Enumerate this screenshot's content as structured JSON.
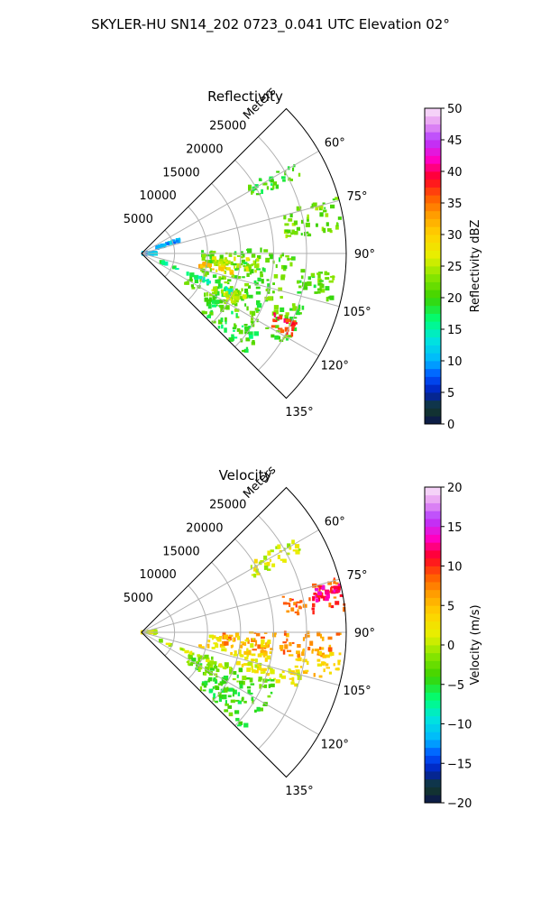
{
  "figure": {
    "suptitle": "SKYLER-HU  SN14_202  0723_0.041 UTC Elevation 02°"
  },
  "chart_data": [
    {
      "type": "heatmap",
      "projection": "polar-sector",
      "title": "Reflectivity",
      "range_label": "Meters",
      "range_ticks": [
        5000,
        10000,
        15000,
        20000,
        25000
      ],
      "range_tick_labels": [
        "5000",
        "10000",
        "15000",
        "20000",
        "25000"
      ],
      "range_max": 31000,
      "angle_ticks_deg": [
        60,
        75,
        90,
        105,
        120,
        135
      ],
      "angle_tick_labels": [
        "60°",
        "75°",
        "90°",
        "105°",
        "120°",
        "135°"
      ],
      "sector_deg": [
        45,
        135
      ],
      "grid": true,
      "colorbar": {
        "label": "Reflectivity dBZ",
        "min": 0,
        "max": 50,
        "ticks": [
          0,
          5,
          10,
          15,
          20,
          25,
          30,
          35,
          40,
          45,
          50
        ],
        "tick_labels": [
          "0",
          "5",
          "10",
          "15",
          "20",
          "25",
          "30",
          "35",
          "40",
          "45",
          "50"
        ]
      },
      "regions": [
        {
          "az": [
            68,
            72
          ],
          "r": [
            2500,
            6500
          ],
          "value": 10
        },
        {
          "az": [
            85,
            94
          ],
          "r": [
            0,
            2200
          ],
          "value": 11
        },
        {
          "az": [
            58,
            64
          ],
          "r": [
            19000,
            27000
          ],
          "value": 20
        },
        {
          "az": [
            74,
            84
          ],
          "r": [
            22000,
            31000
          ],
          "value": 22
        },
        {
          "az": [
            88,
            108
          ],
          "r": [
            9000,
            23000
          ],
          "value": 21
        },
        {
          "az": [
            93,
            99
          ],
          "r": [
            11000,
            18000
          ],
          "value": 25
        },
        {
          "az": [
            96,
            104
          ],
          "r": [
            24000,
            30500
          ],
          "value": 21
        },
        {
          "az": [
            99,
            103
          ],
          "r": [
            9000,
            14000
          ],
          "value": 30
        },
        {
          "az": [
            108,
            124
          ],
          "r": [
            8000,
            26000
          ],
          "value": 21
        },
        {
          "az": [
            112,
            118
          ],
          "r": [
            12000,
            17000
          ],
          "value": 26
        },
        {
          "az": [
            114,
            119
          ],
          "r": [
            22000,
            26000
          ],
          "value": 38
        },
        {
          "az": [
            122,
            134
          ],
          "r": [
            12000,
            22000
          ],
          "value": 19
        },
        {
          "az": [
            112,
            114
          ],
          "r": [
            3000,
            15000
          ],
          "value": 16
        }
      ]
    },
    {
      "type": "heatmap",
      "projection": "polar-sector",
      "title": "Velocity",
      "range_label": "Meters",
      "range_ticks": [
        5000,
        10000,
        15000,
        20000,
        25000
      ],
      "range_tick_labels": [
        "5000",
        "10000",
        "15000",
        "20000",
        "25000"
      ],
      "range_max": 31000,
      "angle_ticks_deg": [
        60,
        75,
        90,
        105,
        120,
        135
      ],
      "angle_tick_labels": [
        "60°",
        "75°",
        "90°",
        "105°",
        "120°",
        "135°"
      ],
      "sector_deg": [
        45,
        135
      ],
      "grid": true,
      "colorbar": {
        "label": "Velocity (m/s)",
        "min": -20,
        "max": 20,
        "ticks": [
          -20,
          -15,
          -10,
          -5,
          0,
          5,
          10,
          15,
          20
        ],
        "tick_labels": [
          "−20",
          "−15",
          "−10",
          "−5",
          "0",
          "5",
          "10",
          "15",
          "20"
        ]
      },
      "regions": [
        {
          "az": [
            85,
            94
          ],
          "r": [
            0,
            2200
          ],
          "value": 1
        },
        {
          "az": [
            58,
            64
          ],
          "r": [
            19000,
            27000
          ],
          "value": 1
        },
        {
          "az": [
            74,
            84
          ],
          "r": [
            22000,
            31000
          ],
          "value": 9
        },
        {
          "az": [
            76,
            80
          ],
          "r": [
            27000,
            31000
          ],
          "value": 12
        },
        {
          "az": [
            90,
            100
          ],
          "r": [
            12000,
            30000
          ],
          "value": 7
        },
        {
          "az": [
            93,
            104
          ],
          "r": [
            9000,
            20000
          ],
          "value": 3
        },
        {
          "az": [
            96,
            104
          ],
          "r": [
            24000,
            30500
          ],
          "value": 4
        },
        {
          "az": [
            104,
            110
          ],
          "r": [
            15000,
            25000
          ],
          "value": 2
        },
        {
          "az": [
            110,
            124
          ],
          "r": [
            8000,
            22000
          ],
          "value": -3
        },
        {
          "az": [
            122,
            134
          ],
          "r": [
            12000,
            22000
          ],
          "value": -4
        },
        {
          "az": [
            112,
            114
          ],
          "r": [
            3000,
            15000
          ],
          "value": 0
        }
      ]
    }
  ]
}
